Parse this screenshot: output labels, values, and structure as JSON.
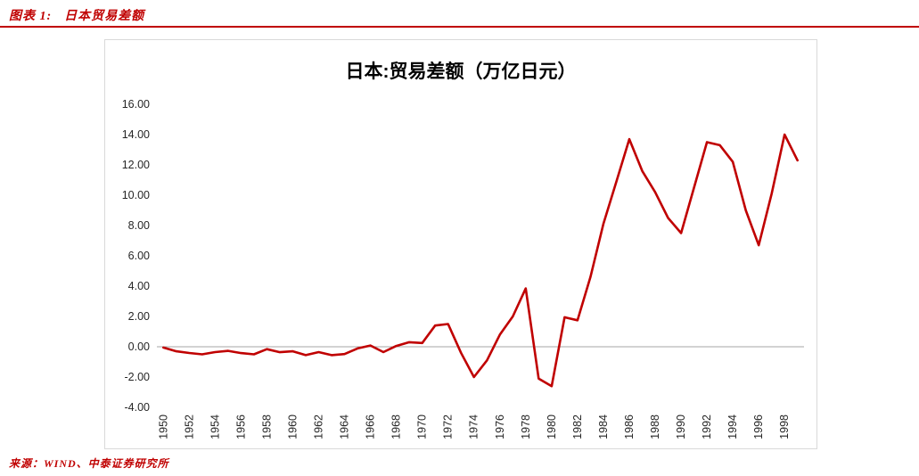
{
  "header": {
    "label": "图表 1:",
    "title": "日本贸易差额"
  },
  "footer": {
    "source": "来源：WIND、中泰证券研究所"
  },
  "colors": {
    "accent": "#C00000",
    "line": "#C00000",
    "zero_axis": "#A6A6A6",
    "tick_text": "#262626"
  },
  "chart_data": {
    "type": "line",
    "title": "日本:贸易差额（万亿日元）",
    "xlabel": "",
    "ylabel": "",
    "ylim": [
      -4,
      16
    ],
    "ytick_step": 2,
    "xtick_step": 2,
    "grid": false,
    "legend_position": "none",
    "line_color": "#C00000",
    "x": [
      1950,
      1951,
      1952,
      1953,
      1954,
      1955,
      1956,
      1957,
      1958,
      1959,
      1960,
      1961,
      1962,
      1963,
      1964,
      1965,
      1966,
      1967,
      1968,
      1969,
      1970,
      1971,
      1972,
      1973,
      1974,
      1975,
      1976,
      1977,
      1978,
      1979,
      1980,
      1981,
      1982,
      1983,
      1984,
      1985,
      1986,
      1987,
      1988,
      1989,
      1990,
      1991,
      1992,
      1993,
      1994,
      1995,
      1996,
      1997,
      1998,
      1999
    ],
    "values": [
      -0.05,
      -0.3,
      -0.41,
      -0.5,
      -0.35,
      -0.27,
      -0.42,
      -0.5,
      -0.16,
      -0.36,
      -0.3,
      -0.55,
      -0.35,
      -0.55,
      -0.48,
      -0.11,
      0.08,
      -0.35,
      0.05,
      0.3,
      0.25,
      1.4,
      1.5,
      -0.4,
      -2.0,
      -0.9,
      0.8,
      2.0,
      3.85,
      -2.1,
      -2.6,
      1.95,
      1.75,
      4.6,
      8.1,
      10.9,
      13.7,
      11.6,
      10.2,
      8.5,
      7.5,
      10.5,
      13.5,
      13.3,
      12.2,
      9.0,
      6.7,
      10.1,
      14.0,
      12.3
    ]
  }
}
